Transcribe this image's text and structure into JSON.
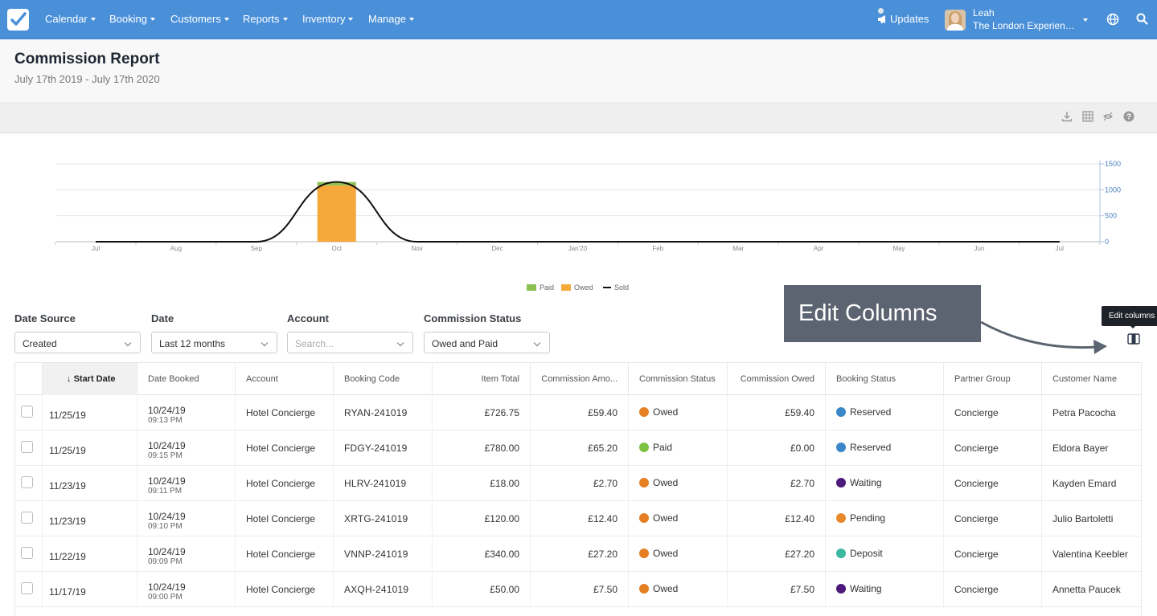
{
  "nav": {
    "items": [
      "Calendar",
      "Booking",
      "Customers",
      "Reports",
      "Inventory",
      "Manage"
    ],
    "updates_label": "Updates",
    "user_name": "Leah",
    "user_org": "The London Experience..."
  },
  "header": {
    "title": "Commission Report",
    "subtitle": "July 17th 2019 - July 17th 2020"
  },
  "toolbar": {
    "icons": [
      "download-icon",
      "table-icon",
      "hide-icon",
      "help-icon"
    ]
  },
  "chart_data": {
    "type": "bar",
    "categories": [
      "Jul",
      "Aug",
      "Sep",
      "Oct",
      "Nov",
      "Dec",
      "Jan'20",
      "Feb",
      "Mar",
      "Apr",
      "May",
      "Jun",
      "Jul"
    ],
    "series": [
      {
        "name": "Paid",
        "type": "bar",
        "color": "#8cc152",
        "values": [
          0,
          0,
          0,
          65,
          0,
          0,
          0,
          0,
          0,
          0,
          0,
          0,
          0
        ]
      },
      {
        "name": "Owed",
        "type": "bar",
        "color": "#f5a93a",
        "values": [
          0,
          0,
          0,
          1085,
          0,
          0,
          0,
          0,
          0,
          0,
          0,
          0,
          0
        ]
      },
      {
        "name": "Sold",
        "type": "line",
        "color": "#111111",
        "values": [
          0,
          0,
          0,
          1150,
          0,
          0,
          0,
          0,
          0,
          0,
          0,
          0,
          0
        ]
      }
    ],
    "y_ticks": [
      "1500",
      "1000",
      "500",
      "0"
    ],
    "ylim": [
      0,
      1500
    ],
    "y_axis_side": "right",
    "legend_position": "bottom",
    "grid": true
  },
  "filters": {
    "date_source": {
      "label": "Date Source",
      "value": "Created"
    },
    "date": {
      "label": "Date",
      "value": "Last 12 months"
    },
    "account": {
      "label": "Account",
      "placeholder": "Search..."
    },
    "commission_status": {
      "label": "Commission Status",
      "value": "Owed and Paid"
    }
  },
  "callout": {
    "text": "Edit Columns",
    "tooltip": "Edit columns"
  },
  "table": {
    "columns": [
      "Start Date",
      "Date Booked",
      "Account",
      "Booking Code",
      "Item Total",
      "Commission Amo...",
      "Commission Status",
      "Commission Owed",
      "Booking Status",
      "Partner Group",
      "Customer Name"
    ],
    "rows": [
      {
        "start": "11/25/19",
        "booked_date": "10/24/19",
        "booked_time": "09:13 PM",
        "account": "Hotel Concierge",
        "code": "RYAN-241019",
        "total": "£726.75",
        "commission": "£59.40",
        "comm_status": "Owed",
        "comm_color": "#e67e22",
        "owed": "£59.40",
        "booking_status": "Reserved",
        "bs_color": "#3a87c8",
        "partner": "Concierge",
        "customer": "Petra Pacocha"
      },
      {
        "start": "11/25/19",
        "booked_date": "10/24/19",
        "booked_time": "09:15 PM",
        "account": "Hotel Concierge",
        "code": "FDGY-241019",
        "total": "£780.00",
        "commission": "£65.20",
        "comm_status": "Paid",
        "comm_color": "#7cc142",
        "owed": "£0.00",
        "booking_status": "Reserved",
        "bs_color": "#3a87c8",
        "partner": "Concierge",
        "customer": "Eldora Bayer"
      },
      {
        "start": "11/23/19",
        "booked_date": "10/24/19",
        "booked_time": "09:11 PM",
        "account": "Hotel Concierge",
        "code": "HLRV-241019",
        "total": "£18.00",
        "commission": "£2.70",
        "comm_status": "Owed",
        "comm_color": "#e67e22",
        "owed": "£2.70",
        "booking_status": "Waiting",
        "bs_color": "#4b1a7a",
        "partner": "Concierge",
        "customer": "Kayden Emard"
      },
      {
        "start": "11/23/19",
        "booked_date": "10/24/19",
        "booked_time": "09:10 PM",
        "account": "Hotel Concierge",
        "code": "XRTG-241019",
        "total": "£120.00",
        "commission": "£12.40",
        "comm_status": "Owed",
        "comm_color": "#e67e22",
        "owed": "£12.40",
        "booking_status": "Pending",
        "bs_color": "#e8892b",
        "partner": "Concierge",
        "customer": "Julio Bartoletti"
      },
      {
        "start": "11/22/19",
        "booked_date": "10/24/19",
        "booked_time": "09:09 PM",
        "account": "Hotel Concierge",
        "code": "VNNP-241019",
        "total": "£340.00",
        "commission": "£27.20",
        "comm_status": "Owed",
        "comm_color": "#e67e22",
        "owed": "£27.20",
        "booking_status": "Deposit",
        "bs_color": "#3cb8a0",
        "partner": "Concierge",
        "customer": "Valentina Keebler"
      },
      {
        "start": "11/17/19",
        "booked_date": "10/24/19",
        "booked_time": "09:00 PM",
        "account": "Hotel Concierge",
        "code": "AXQH-241019",
        "total": "£50.00",
        "commission": "£7.50",
        "comm_status": "Owed",
        "comm_color": "#e67e22",
        "owed": "£7.50",
        "booking_status": "Waiting",
        "bs_color": "#4b1a7a",
        "partner": "Concierge",
        "customer": "Annetta Paucek"
      }
    ]
  }
}
